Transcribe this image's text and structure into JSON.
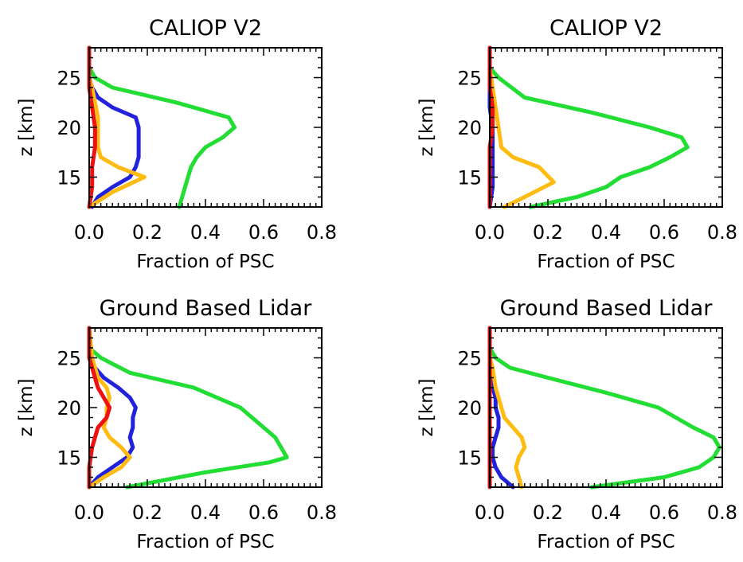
{
  "chart_data": [
    {
      "type": "line",
      "title": "CALIOP V2",
      "xlabel": "Fraction of PSC",
      "ylabel": "z [km]",
      "xlim": [
        0.0,
        0.8
      ],
      "ylim": [
        12,
        28
      ],
      "xticks": [
        "0.0",
        "0.2",
        "0.4",
        "0.6",
        "0.8"
      ],
      "yticks": [
        "15",
        "20",
        "25"
      ],
      "grid": false,
      "series": [
        {
          "color": "#22dd33",
          "points": [
            [
              0.31,
              12
            ],
            [
              0.33,
              14
            ],
            [
              0.35,
              16
            ],
            [
              0.37,
              17
            ],
            [
              0.4,
              18
            ],
            [
              0.46,
              19
            ],
            [
              0.5,
              20
            ],
            [
              0.48,
              21
            ],
            [
              0.3,
              22.5
            ],
            [
              0.08,
              24
            ],
            [
              0.02,
              25
            ],
            [
              0.0,
              26
            ],
            [
              0.0,
              28
            ]
          ]
        },
        {
          "color": "#2222dd",
          "points": [
            [
              0.01,
              12
            ],
            [
              0.03,
              13
            ],
            [
              0.08,
              14
            ],
            [
              0.14,
              15
            ],
            [
              0.16,
              16
            ],
            [
              0.17,
              17
            ],
            [
              0.17,
              19
            ],
            [
              0.17,
              20
            ],
            [
              0.16,
              21
            ],
            [
              0.08,
              22
            ],
            [
              0.03,
              23
            ],
            [
              0.01,
              24
            ],
            [
              0.0,
              25
            ],
            [
              0.0,
              28
            ]
          ]
        },
        {
          "color": "#ffbb11",
          "points": [
            [
              0.0,
              12
            ],
            [
              0.08,
              13.5
            ],
            [
              0.19,
              15
            ],
            [
              0.1,
              16
            ],
            [
              0.04,
              17
            ],
            [
              0.03,
              18
            ],
            [
              0.03,
              20
            ],
            [
              0.03,
              21
            ],
            [
              0.02,
              22.5
            ],
            [
              0.01,
              24
            ],
            [
              0.0,
              25
            ],
            [
              0.0,
              28
            ]
          ]
        },
        {
          "color": "#ee1111",
          "points": [
            [
              0.0,
              12
            ],
            [
              0.01,
              14
            ],
            [
              0.01,
              16
            ],
            [
              0.02,
              18
            ],
            [
              0.02,
              20
            ],
            [
              0.01,
              22
            ],
            [
              0.0,
              24
            ],
            [
              0.0,
              28
            ]
          ]
        }
      ]
    },
    {
      "type": "line",
      "title": "CALIOP V2",
      "xlabel": "Fraction of PSC",
      "ylabel": "z [km]",
      "xlim": [
        0.0,
        0.8
      ],
      "ylim": [
        12,
        28
      ],
      "xticks": [
        "0.0",
        "0.2",
        "0.4",
        "0.6",
        "0.8"
      ],
      "yticks": [
        "15",
        "20",
        "25"
      ],
      "grid": false,
      "series": [
        {
          "color": "#22dd33",
          "points": [
            [
              0.14,
              12
            ],
            [
              0.3,
              13
            ],
            [
              0.4,
              14
            ],
            [
              0.45,
              15
            ],
            [
              0.55,
              16
            ],
            [
              0.62,
              17
            ],
            [
              0.68,
              18
            ],
            [
              0.66,
              19
            ],
            [
              0.55,
              20
            ],
            [
              0.35,
              21.5
            ],
            [
              0.12,
              23
            ],
            [
              0.03,
              25
            ],
            [
              0.0,
              26
            ],
            [
              0.0,
              28
            ]
          ]
        },
        {
          "color": "#2222dd",
          "points": [
            [
              0.0,
              12
            ],
            [
              0.01,
              14
            ],
            [
              0.01,
              16
            ],
            [
              0.01,
              18
            ],
            [
              0.01,
              20
            ],
            [
              0.0,
              22
            ],
            [
              0.0,
              28
            ]
          ]
        },
        {
          "color": "#ffbb11",
          "points": [
            [
              0.05,
              12
            ],
            [
              0.12,
              13
            ],
            [
              0.22,
              14.5
            ],
            [
              0.17,
              16
            ],
            [
              0.08,
              17
            ],
            [
              0.04,
              18
            ],
            [
              0.03,
              20
            ],
            [
              0.02,
              22
            ],
            [
              0.01,
              24
            ],
            [
              0.0,
              26
            ],
            [
              0.0,
              28
            ]
          ]
        },
        {
          "color": "#ee1111",
          "points": [
            [
              0.0,
              12
            ],
            [
              0.0,
              14
            ],
            [
              0.0,
              16
            ],
            [
              0.0,
              18
            ],
            [
              0.01,
              20
            ],
            [
              0.01,
              22
            ],
            [
              0.0,
              24
            ],
            [
              0.0,
              28
            ]
          ]
        }
      ]
    },
    {
      "type": "line",
      "title": "Ground Based Lidar",
      "xlabel": "Fraction of PSC",
      "ylabel": "z [km]",
      "xlim": [
        0.0,
        0.8
      ],
      "ylim": [
        12,
        28
      ],
      "xticks": [
        "0.0",
        "0.2",
        "0.4",
        "0.6",
        "0.8"
      ],
      "yticks": [
        "15",
        "20",
        "25"
      ],
      "grid": false,
      "series": [
        {
          "color": "#22dd33",
          "points": [
            [
              0.13,
              12
            ],
            [
              0.4,
              13.5
            ],
            [
              0.62,
              14.5
            ],
            [
              0.68,
              15
            ],
            [
              0.66,
              16
            ],
            [
              0.64,
              17
            ],
            [
              0.6,
              18
            ],
            [
              0.52,
              20
            ],
            [
              0.36,
              22
            ],
            [
              0.14,
              23.5
            ],
            [
              0.04,
              25
            ],
            [
              0.0,
              26
            ],
            [
              0.0,
              28
            ]
          ]
        },
        {
          "color": "#2222dd",
          "points": [
            [
              0.0,
              12
            ],
            [
              0.03,
              13
            ],
            [
              0.08,
              14
            ],
            [
              0.13,
              15
            ],
            [
              0.15,
              16
            ],
            [
              0.14,
              17
            ],
            [
              0.15,
              18
            ],
            [
              0.15,
              19
            ],
            [
              0.16,
              20
            ],
            [
              0.14,
              21
            ],
            [
              0.1,
              22
            ],
            [
              0.05,
              23
            ],
            [
              0.02,
              24
            ],
            [
              0.0,
              25
            ],
            [
              0.0,
              28
            ]
          ]
        },
        {
          "color": "#ffbb11",
          "points": [
            [
              0.0,
              12
            ],
            [
              0.05,
              13
            ],
            [
              0.11,
              14
            ],
            [
              0.14,
              15
            ],
            [
              0.11,
              16
            ],
            [
              0.07,
              17
            ],
            [
              0.05,
              18
            ],
            [
              0.06,
              19
            ],
            [
              0.06,
              20
            ],
            [
              0.07,
              21
            ],
            [
              0.06,
              22
            ],
            [
              0.03,
              23
            ],
            [
              0.01,
              25
            ],
            [
              0.0,
              28
            ]
          ]
        },
        {
          "color": "#ee1111",
          "points": [
            [
              0.0,
              12
            ],
            [
              0.0,
              14
            ],
            [
              0.01,
              16
            ],
            [
              0.02,
              17
            ],
            [
              0.03,
              18
            ],
            [
              0.06,
              19
            ],
            [
              0.07,
              20
            ],
            [
              0.05,
              21
            ],
            [
              0.03,
              22
            ],
            [
              0.02,
              23
            ],
            [
              0.01,
              24
            ],
            [
              0.0,
              25
            ],
            [
              0.0,
              28
            ]
          ]
        }
      ]
    },
    {
      "type": "line",
      "title": "Ground Based Lidar",
      "xlabel": "Fraction of PSC",
      "ylabel": "z [km]",
      "xlim": [
        0.0,
        0.8
      ],
      "ylim": [
        12,
        28
      ],
      "xticks": [
        "0.0",
        "0.2",
        "0.4",
        "0.6",
        "0.8"
      ],
      "yticks": [
        "15",
        "20",
        "25"
      ],
      "grid": false,
      "series": [
        {
          "color": "#22dd33",
          "points": [
            [
              0.35,
              12
            ],
            [
              0.6,
              13
            ],
            [
              0.72,
              14
            ],
            [
              0.77,
              15
            ],
            [
              0.79,
              16
            ],
            [
              0.77,
              17
            ],
            [
              0.7,
              18
            ],
            [
              0.58,
              20
            ],
            [
              0.4,
              21.5
            ],
            [
              0.2,
              23
            ],
            [
              0.07,
              24
            ],
            [
              0.02,
              25
            ],
            [
              0.0,
              26
            ],
            [
              0.0,
              28
            ]
          ]
        },
        {
          "color": "#2222dd",
          "points": [
            [
              0.08,
              12
            ],
            [
              0.04,
              13
            ],
            [
              0.02,
              14
            ],
            [
              0.01,
              15
            ],
            [
              0.01,
              16
            ],
            [
              0.02,
              17
            ],
            [
              0.03,
              18
            ],
            [
              0.03,
              19
            ],
            [
              0.02,
              20
            ],
            [
              0.02,
              21
            ],
            [
              0.01,
              22
            ],
            [
              0.01,
              23
            ],
            [
              0.0,
              24
            ],
            [
              0.0,
              28
            ]
          ]
        },
        {
          "color": "#ffbb11",
          "points": [
            [
              0.11,
              12
            ],
            [
              0.1,
              13
            ],
            [
              0.09,
              14
            ],
            [
              0.1,
              15
            ],
            [
              0.12,
              16
            ],
            [
              0.11,
              17
            ],
            [
              0.08,
              18
            ],
            [
              0.05,
              19
            ],
            [
              0.04,
              20
            ],
            [
              0.03,
              21
            ],
            [
              0.02,
              22
            ],
            [
              0.01,
              24
            ],
            [
              0.0,
              25
            ],
            [
              0.0,
              28
            ]
          ]
        },
        {
          "color": "#ee1111",
          "points": [
            [
              0.0,
              12
            ],
            [
              0.0,
              14
            ],
            [
              0.0,
              16
            ],
            [
              0.0,
              18
            ],
            [
              0.0,
              20
            ],
            [
              0.0,
              22
            ],
            [
              0.0,
              24
            ],
            [
              0.0,
              28
            ]
          ]
        }
      ]
    }
  ]
}
